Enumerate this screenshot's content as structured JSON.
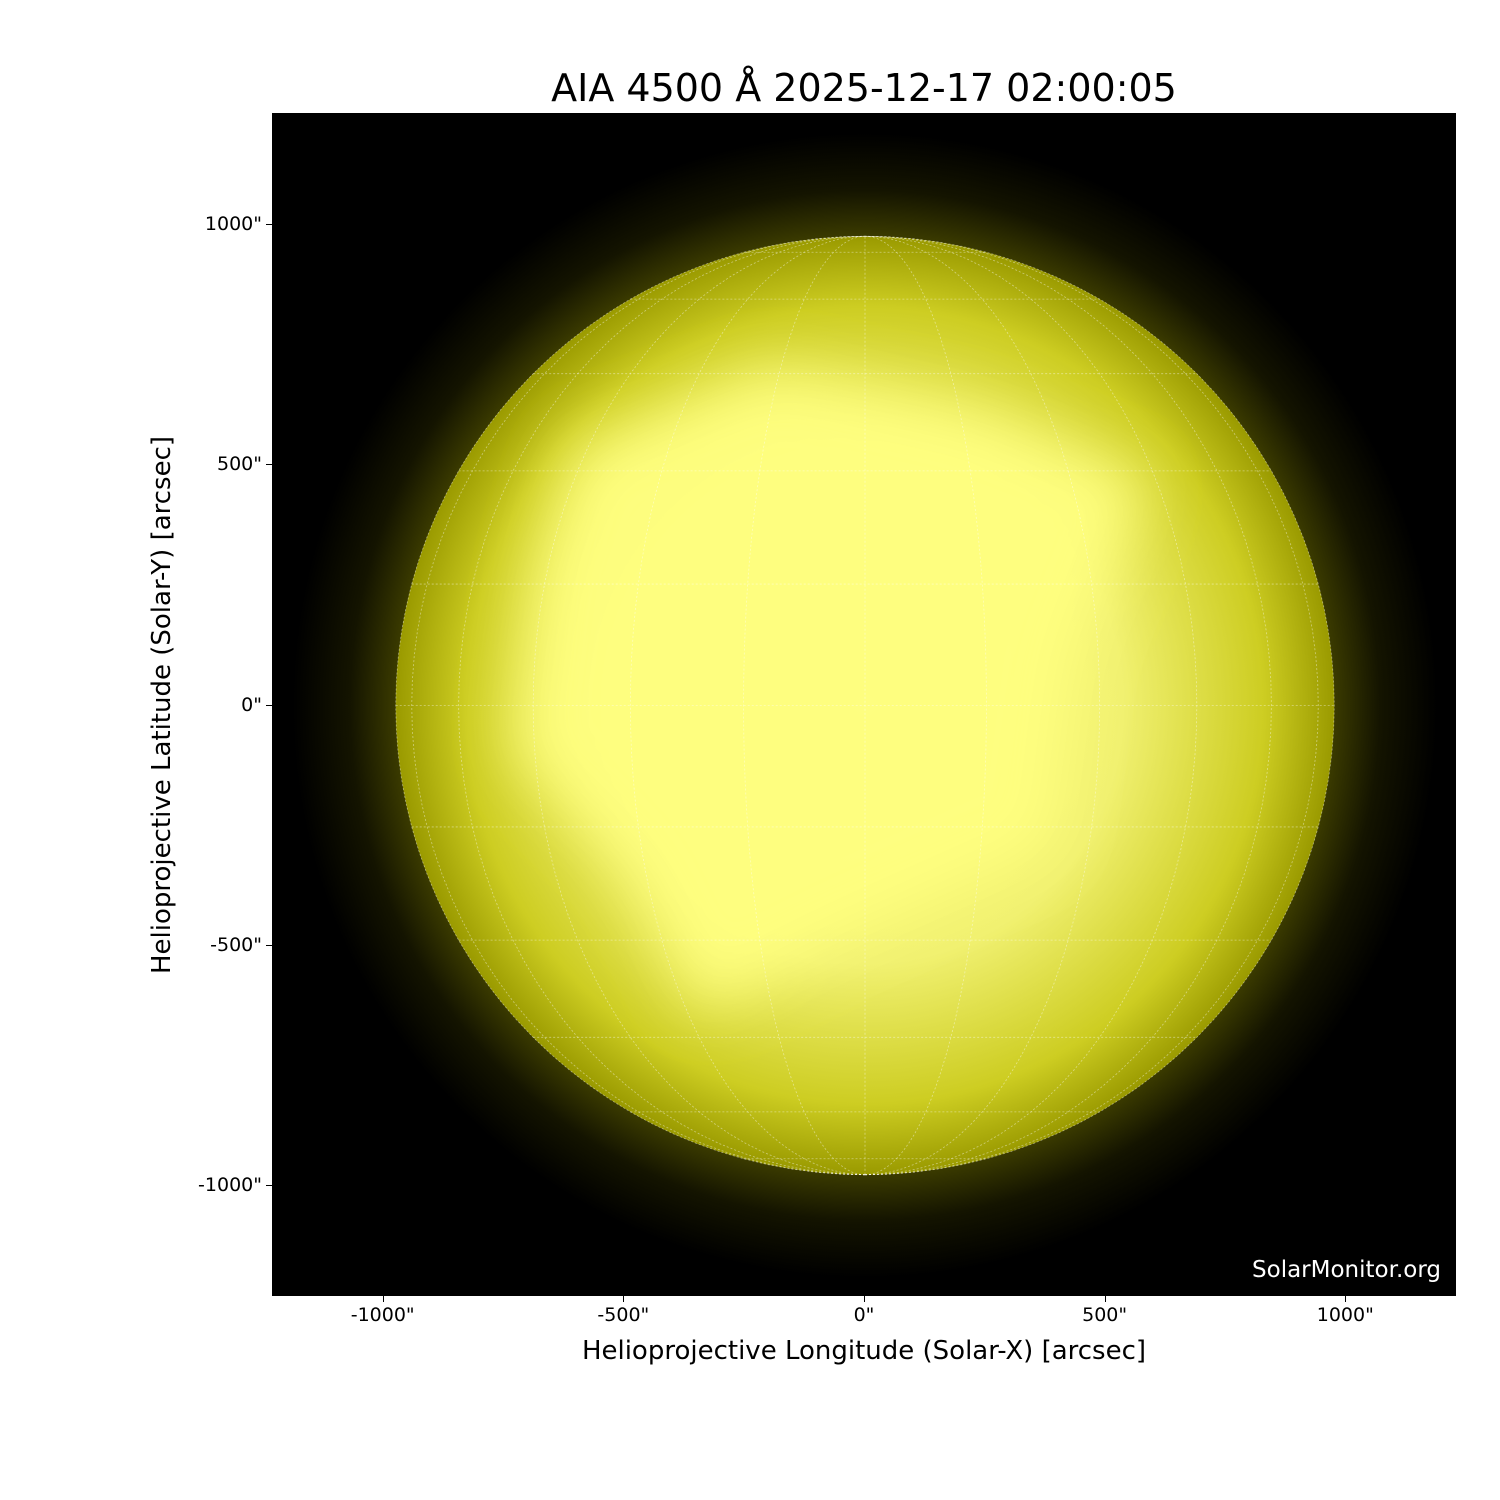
{
  "title": "AIA 4500 Å 2025-12-17 02:00:05",
  "watermark": "SolarMonitor.org",
  "x_axis": {
    "label": "Helioprojective Longitude (Solar-X) [arcsec]",
    "ticks": [
      "-1000\"",
      "-500\"",
      "0\"",
      "500\"",
      "1000\""
    ],
    "tick_values": [
      -1000,
      -500,
      0,
      500,
      1000
    ],
    "range": [
      -1230,
      1230
    ]
  },
  "y_axis": {
    "label": "Helioprojective Latitude (Solar-Y) [arcsec]",
    "ticks": [
      "1000\"",
      "500\"",
      "0\"",
      "-500\"",
      "-1000\""
    ],
    "tick_values": [
      1000,
      500,
      0,
      -500,
      -1000
    ],
    "range": [
      -1230,
      1230
    ]
  },
  "colors": {
    "disk_bright": "#ffff80",
    "disk_limb": "#8a8a00",
    "background": "#000000",
    "grid": "#ffffff"
  },
  "solar_radius_arcsec": 975,
  "grid_spacing_deg": 15
}
